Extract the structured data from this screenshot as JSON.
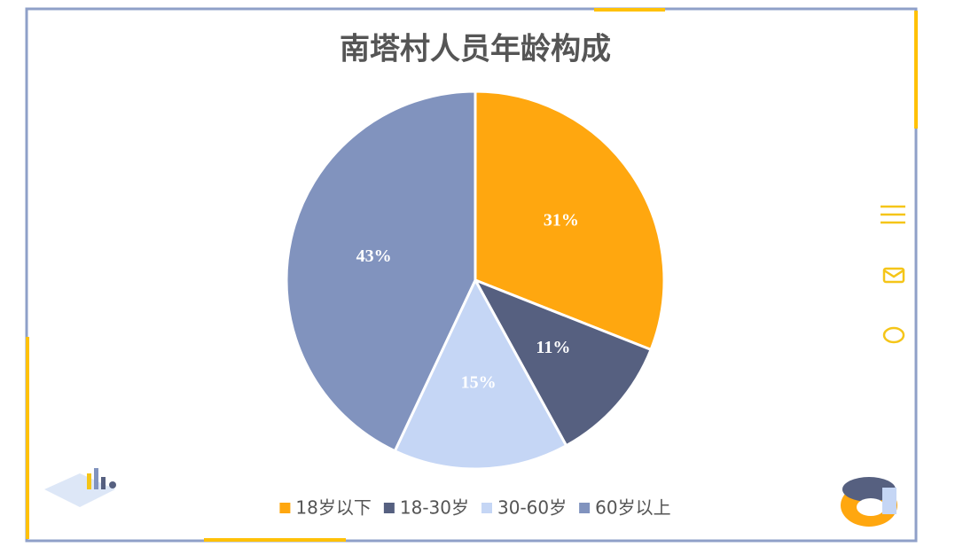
{
  "chart_data": {
    "type": "pie",
    "title": "南塔村人员年龄构成",
    "categories": [
      "18岁以下",
      "18-30岁",
      "30-60岁",
      "60岁以上"
    ],
    "values": [
      31,
      11,
      15,
      43
    ],
    "value_labels": [
      "31%",
      "11%",
      "15%",
      "43%"
    ],
    "colors": [
      "#FFA70F",
      "#566080",
      "#C5D6F5",
      "#8193BE"
    ],
    "legend": "bottom"
  }
}
